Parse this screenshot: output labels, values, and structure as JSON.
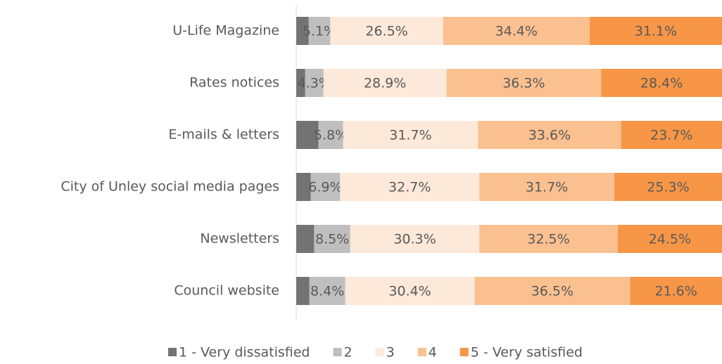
{
  "chart_data": {
    "type": "stacked-bar-horizontal",
    "categories": [
      "U-Life Magazine",
      "Rates notices",
      "E-mails & letters",
      "City of Unley social media pages",
      "Newsletters",
      "Council website"
    ],
    "xlim": [
      0,
      100
    ],
    "series": [
      {
        "name": "1 - Very dissatisfied",
        "color": "#737373",
        "values": [
          2.9,
          2.1,
          5.2,
          3.4,
          4.2,
          3.1
        ]
      },
      {
        "name": "2",
        "color": "#bfbfbf",
        "values": [
          5.1,
          4.3,
          5.8,
          6.9,
          8.5,
          8.4
        ],
        "value_labels": [
          "5.1%",
          "4.3%",
          "5.8%",
          "6.9%",
          "8.5%",
          "8.4%"
        ]
      },
      {
        "name": "3",
        "color": "#fde9d9",
        "values": [
          26.5,
          28.9,
          31.7,
          32.7,
          30.3,
          30.4
        ],
        "value_labels": [
          "26.5%",
          "28.9%",
          "31.7%",
          "32.7%",
          "30.3%",
          "30.4%"
        ]
      },
      {
        "name": "4",
        "color": "#fac090",
        "values": [
          34.4,
          36.3,
          33.6,
          31.7,
          32.5,
          36.5
        ],
        "value_labels": [
          "34.4%",
          "36.3%",
          "33.6%",
          "31.7%",
          "32.5%",
          "36.5%"
        ]
      },
      {
        "name": "5 - Very satisfied",
        "color": "#f79646",
        "values": [
          31.1,
          28.4,
          23.7,
          25.3,
          24.5,
          21.6
        ],
        "value_labels": [
          "31.1%",
          "28.4%",
          "23.7%",
          "25.3%",
          "24.5%",
          "21.6%"
        ]
      }
    ]
  }
}
